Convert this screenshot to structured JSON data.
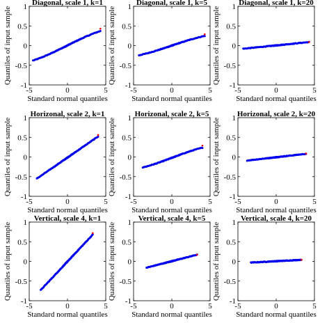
{
  "figure": {
    "xlabel": "Standard normal quantiles",
    "ylabel": "Quantiles of input sample"
  },
  "chart_data": [
    {
      "type": "scatter",
      "title": "Diagonal, scale 1, k=1",
      "xlabel": "Standard normal quantiles",
      "ylabel": "Quantiles of input sample",
      "xlim": [
        -5,
        5
      ],
      "ylim": [
        -1,
        1
      ],
      "xticks": [
        -5,
        0,
        5
      ],
      "yticks": [
        -1,
        -0.5,
        0,
        0.5,
        1
      ],
      "grid": false,
      "qq": {
        "x_range": [
          -4.5,
          4.3
        ],
        "y_range": [
          -0.43,
          0.42
        ],
        "shape": "s-curve",
        "outlier_x": 4.3,
        "outlier_y": 0.43
      },
      "colors": {
        "points": "#0000ee",
        "reference_line": "#ff0000"
      }
    },
    {
      "type": "scatter",
      "title": "Diagonal, scale 1, k=5",
      "xlabel": "Standard normal quantiles",
      "ylabel": "Quantiles of input sample",
      "xlim": [
        -5,
        5
      ],
      "ylim": [
        -1,
        1
      ],
      "xticks": [
        -5,
        0,
        5
      ],
      "yticks": [
        -1,
        -0.5,
        0,
        0.5,
        1
      ],
      "grid": false,
      "qq": {
        "x_range": [
          -4.3,
          4.3
        ],
        "y_range": [
          -0.28,
          0.28
        ],
        "shape": "s-curve",
        "outlier_x": 4.3,
        "outlier_y": 0.29
      },
      "colors": {
        "points": "#0000ee",
        "reference_line": "#ff0000"
      }
    },
    {
      "type": "scatter",
      "title": "Diagonal, scale 1, k=20",
      "xlabel": "Standard normal quantiles",
      "ylabel": "Quantiles of input sample",
      "xlim": [
        -5,
        5
      ],
      "ylim": [
        -1,
        1
      ],
      "xticks": [
        -5,
        0,
        5
      ],
      "yticks": [
        -1,
        -0.5,
        0,
        0.5,
        1
      ],
      "grid": false,
      "qq": {
        "x_range": [
          -4.3,
          4.3
        ],
        "y_range": [
          -0.08,
          0.09
        ],
        "shape": "linear",
        "outlier_x": 4.3,
        "outlier_y": 0.09
      },
      "colors": {
        "points": "#0000ee",
        "reference_line": "#ff0000"
      }
    },
    {
      "type": "scatter",
      "title": "Horizonal, scale 2, k=1",
      "xlabel": "Standard normal quantiles",
      "ylabel": "Quantiles of input sample",
      "xlim": [
        -5,
        5
      ],
      "ylim": [
        -1,
        1
      ],
      "xticks": [
        -5,
        0,
        5
      ],
      "yticks": [
        -1,
        -0.5,
        0,
        0.5,
        1
      ],
      "grid": false,
      "qq": {
        "x_range": [
          -4.0,
          4.0
        ],
        "y_range": [
          -0.55,
          0.52
        ],
        "shape": "linear",
        "outlier_x": 4.0,
        "outlier_y": 0.56
      },
      "colors": {
        "points": "#0000ee",
        "reference_line": "#ff0000"
      }
    },
    {
      "type": "scatter",
      "title": "Horizonal, scale 2, k=5",
      "xlabel": "Standard normal quantiles",
      "ylabel": "Quantiles of input sample",
      "xlim": [
        -5,
        5
      ],
      "ylim": [
        -1,
        1
      ],
      "xticks": [
        -5,
        0,
        5
      ],
      "yticks": [
        -1,
        -0.5,
        0,
        0.5,
        1
      ],
      "grid": false,
      "qq": {
        "x_range": [
          -3.8,
          4.0
        ],
        "y_range": [
          -0.3,
          0.27
        ],
        "shape": "s-curve",
        "outlier_x": 4.0,
        "outlier_y": 0.29
      },
      "colors": {
        "points": "#0000ee",
        "reference_line": "#ff0000"
      }
    },
    {
      "type": "scatter",
      "title": "Horizonal, scale 2, k=20",
      "xlabel": "Standard normal quantiles",
      "ylabel": "Quantiles of input sample",
      "xlim": [
        -5,
        5
      ],
      "ylim": [
        -1,
        1
      ],
      "xticks": [
        -5,
        0,
        5
      ],
      "yticks": [
        -1,
        -0.5,
        0,
        0.5,
        1
      ],
      "grid": false,
      "qq": {
        "x_range": [
          -3.8,
          3.9
        ],
        "y_range": [
          -0.09,
          0.08
        ],
        "shape": "linear",
        "outlier_x": 3.9,
        "outlier_y": 0.09
      },
      "colors": {
        "points": "#0000ee",
        "reference_line": "#ff0000"
      }
    },
    {
      "type": "scatter",
      "title": "Vertical, scale 4, k=1",
      "xlabel": "Standard normal quantiles",
      "ylabel": "Quantiles of input sample",
      "xlim": [
        -5,
        5
      ],
      "ylim": [
        -1,
        1
      ],
      "xticks": [
        -5,
        0,
        5
      ],
      "yticks": [
        -1,
        -0.5,
        0,
        0.5,
        1
      ],
      "grid": false,
      "qq": {
        "x_range": [
          -3.5,
          3.3
        ],
        "y_range": [
          -0.73,
          0.68
        ],
        "shape": "linear",
        "outlier_x": 3.3,
        "outlier_y": 0.72
      },
      "colors": {
        "points": "#0000ee",
        "reference_line": "#ff0000"
      }
    },
    {
      "type": "scatter",
      "title": "Vertical, scale 4, k=5",
      "xlabel": "Standard normal quantiles",
      "ylabel": "Quantiles of input sample",
      "xlim": [
        -5,
        5
      ],
      "ylim": [
        -1,
        1
      ],
      "xticks": [
        -5,
        0,
        5
      ],
      "yticks": [
        -1,
        -0.5,
        0,
        0.5,
        1
      ],
      "grid": false,
      "qq": {
        "x_range": [
          -3.3,
          3.3
        ],
        "y_range": [
          -0.16,
          0.17
        ],
        "shape": "linear",
        "outlier_x": 3.3,
        "outlier_y": 0.17
      },
      "colors": {
        "points": "#0000ee",
        "reference_line": "#ff0000"
      }
    },
    {
      "type": "scatter",
      "title": "Vertical, scale 4, k=20",
      "xlabel": "Standard normal quantiles",
      "ylabel": "Quantiles of input sample",
      "xlim": [
        -5,
        5
      ],
      "ylim": [
        -1,
        1
      ],
      "xticks": [
        -5,
        0,
        5
      ],
      "yticks": [
        -1,
        -0.5,
        0,
        0.5,
        1
      ],
      "grid": false,
      "qq": {
        "x_range": [
          -3.3,
          3.3
        ],
        "y_range": [
          -0.03,
          0.04
        ],
        "shape": "linear",
        "outlier_x": 3.3,
        "outlier_y": 0.04
      },
      "colors": {
        "points": "#0000ee",
        "reference_line": "#ff0000"
      }
    }
  ]
}
